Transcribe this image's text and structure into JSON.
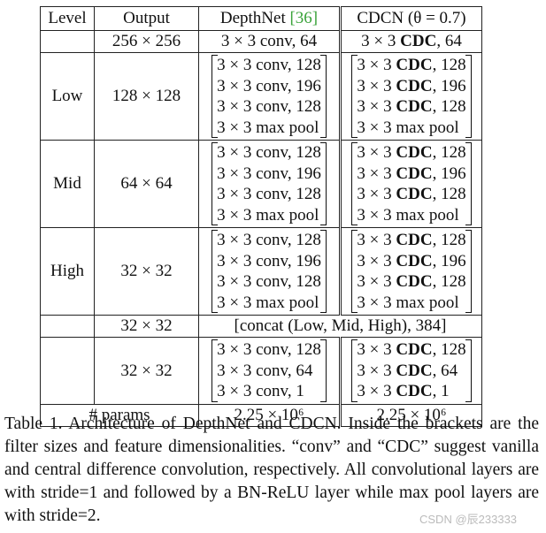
{
  "header": {
    "level": "Level",
    "output": "Output",
    "depthnet": "DepthNet",
    "depthnet_ref": "[36]",
    "cdcn": "CDCN (θ = 0.7)"
  },
  "stem": {
    "output": "256 × 256",
    "depthnet": "3 × 3 conv, 64",
    "cdcn_prefix": "3 × 3 ",
    "cdcn_bold": "CDC",
    "cdcn_suffix": ", 64"
  },
  "blocks": [
    {
      "level": "Low",
      "output": "128 × 128",
      "depthnet": [
        "3 × 3 conv, 128",
        "3 × 3 conv, 196",
        "3 × 3 conv, 128",
        "3 × 3 max pool"
      ],
      "cdcn": [
        {
          "pre": "3 × 3 ",
          "bold": "CDC",
          "post": ", 128"
        },
        {
          "pre": "3 × 3 ",
          "bold": "CDC",
          "post": ", 196"
        },
        {
          "pre": "3 × 3 ",
          "bold": "CDC",
          "post": ", 128"
        },
        {
          "pre": "3 × 3 max pool",
          "bold": "",
          "post": ""
        }
      ]
    },
    {
      "level": "Mid",
      "output": "64 × 64",
      "depthnet": [
        "3 × 3 conv, 128",
        "3 × 3 conv, 196",
        "3 × 3 conv, 128",
        "3 × 3 max pool"
      ],
      "cdcn": [
        {
          "pre": "3 × 3 ",
          "bold": "CDC",
          "post": ", 128"
        },
        {
          "pre": "3 × 3 ",
          "bold": "CDC",
          "post": ", 196"
        },
        {
          "pre": "3 × 3 ",
          "bold": "CDC",
          "post": ", 128"
        },
        {
          "pre": "3 × 3 max pool",
          "bold": "",
          "post": ""
        }
      ]
    },
    {
      "level": "High",
      "output": "32 × 32",
      "depthnet": [
        "3 × 3 conv, 128",
        "3 × 3 conv, 196",
        "3 × 3 conv, 128",
        "3 × 3 max pool"
      ],
      "cdcn": [
        {
          "pre": "3 × 3 ",
          "bold": "CDC",
          "post": ", 128"
        },
        {
          "pre": "3 × 3 ",
          "bold": "CDC",
          "post": ", 196"
        },
        {
          "pre": "3 × 3 ",
          "bold": "CDC",
          "post": ", 128"
        },
        {
          "pre": "3 × 3 max pool",
          "bold": "",
          "post": ""
        }
      ]
    }
  ],
  "concat": {
    "output": "32 × 32",
    "text": "[concat (Low, Mid, High), 384]"
  },
  "head": {
    "output": "32 × 32",
    "depthnet": [
      "3 × 3 conv, 128",
      "3 × 3 conv, 64",
      "3 × 3 conv, 1"
    ],
    "cdcn": [
      {
        "pre": "3 × 3 ",
        "bold": "CDC",
        "post": ", 128"
      },
      {
        "pre": "3 × 3 ",
        "bold": "CDC",
        "post": ", 64"
      },
      {
        "pre": "3 × 3 ",
        "bold": "CDC",
        "post": ", 1"
      }
    ]
  },
  "params": {
    "label": "# params",
    "depthnet": "2.25 × 10⁶",
    "cdcn": "2.25 × 10⁶"
  },
  "caption": "Table 1. Architecture of DepthNet and CDCN. Inside the brackets are the filter sizes and feature dimensionalities. “conv” and “CDC” suggest vanilla and central difference convolution, respectively. All convolutional layers are with stride=1 and followed by a BN-ReLU layer while max pool layers are with stride=2.",
  "watermark": "CSDN @辰233333"
}
